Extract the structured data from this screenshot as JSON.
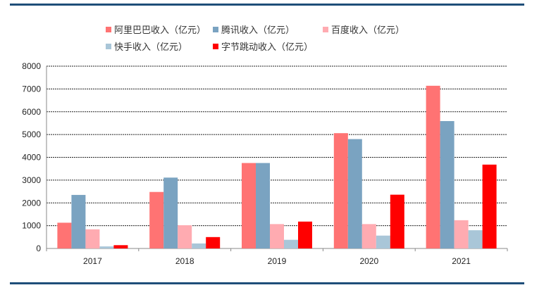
{
  "chart_data": {
    "type": "bar",
    "title": "",
    "xlabel": "",
    "ylabel": "",
    "ylim": [
      0,
      8000
    ],
    "yticks": [
      0,
      1000,
      2000,
      3000,
      4000,
      5000,
      6000,
      7000,
      8000
    ],
    "grid": true,
    "legend_position": "top",
    "categories": [
      "2017",
      "2018",
      "2019",
      "2020",
      "2021"
    ],
    "series": [
      {
        "name": "阿里巴巴收入（亿元）",
        "color": "#ff7373",
        "values": [
          1130,
          2480,
          3750,
          5060,
          7140
        ]
      },
      {
        "name": "腾讯收入（亿元）",
        "color": "#7aa3c1",
        "values": [
          2350,
          3110,
          3750,
          4800,
          5590
        ]
      },
      {
        "name": "百度收入（亿元）",
        "color": "#ffabb1",
        "values": [
          840,
          1020,
          1070,
          1070,
          1240
        ]
      },
      {
        "name": "快手收入（亿元）",
        "color": "#a9c6d8",
        "values": [
          90,
          220,
          380,
          565,
          800
        ]
      },
      {
        "name": "字节跳动收入（亿元）",
        "color": "#ff0000",
        "values": [
          145,
          500,
          1180,
          2360,
          3680
        ]
      }
    ]
  }
}
